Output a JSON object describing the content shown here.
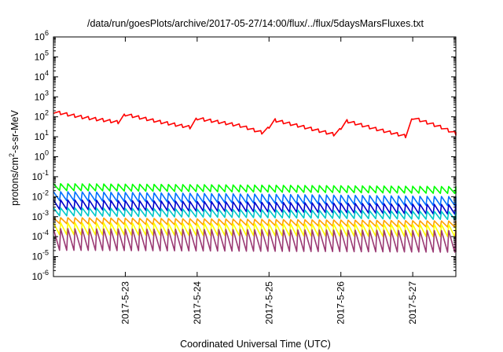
{
  "chart_data": {
    "type": "line",
    "title": "/data/run/goesPlots/archive/2017-05-27/14:00/flux/../flux/5daysMarsFluxes.txt",
    "xlabel": "Coordinated Universal Time (UTC)",
    "ylabel": {
      "prefix": "protons/cm",
      "sup": "2",
      "suffix": "-s-sr-MeV"
    },
    "yscale": "log",
    "ylim_exp": [
      -6,
      6
    ],
    "ytick_exps": [
      -6,
      -5,
      -4,
      -3,
      -2,
      -1,
      0,
      1,
      2,
      3,
      4,
      5,
      6
    ],
    "xlim_days": [
      0.0,
      5.6
    ],
    "xtick_positions": [
      1.0,
      2.0,
      3.0,
      4.0,
      5.0
    ],
    "xtick_labels": [
      "2017-5-23",
      "2017-5-24",
      "2017-5-25",
      "2017-5-26",
      "2017-5-27"
    ],
    "grid": false,
    "legend": "none",
    "series": [
      {
        "color": "#ff0000",
        "sawtooth": {
          "period": 0.1,
          "drop": 0.7
        },
        "anchors": [
          [
            0.0,
            150
          ],
          [
            0.4,
            80
          ],
          [
            0.9,
            45
          ],
          [
            1.0,
            110
          ],
          [
            1.5,
            45
          ],
          [
            1.9,
            25
          ],
          [
            2.0,
            70
          ],
          [
            2.6,
            30
          ],
          [
            2.95,
            12
          ],
          [
            3.05,
            60
          ],
          [
            3.5,
            25
          ],
          [
            3.95,
            10
          ],
          [
            4.05,
            55
          ],
          [
            4.5,
            20
          ],
          [
            4.9,
            9
          ],
          [
            5.0,
            75
          ],
          [
            5.4,
            25
          ],
          [
            5.6,
            12
          ]
        ]
      },
      {
        "color": "#00ff00",
        "sawtooth": {
          "period": 0.1,
          "drop": 2.2
        },
        "anchors": [
          [
            0.0,
            0.045
          ],
          [
            5.6,
            0.032
          ]
        ]
      },
      {
        "color": "#0070ff",
        "sawtooth": {
          "period": 0.1,
          "drop": 2.8
        },
        "anchors": [
          [
            0.0,
            0.018
          ],
          [
            5.6,
            0.01
          ]
        ]
      },
      {
        "color": "#0000cc",
        "sawtooth": {
          "period": 0.1,
          "drop": 3.0
        },
        "anchors": [
          [
            0.0,
            0.007
          ],
          [
            5.6,
            0.004
          ]
        ]
      },
      {
        "color": "#00c8c8",
        "sawtooth": {
          "period": 0.1,
          "drop": 2.5
        },
        "anchors": [
          [
            0.0,
            0.0028
          ],
          [
            5.6,
            0.0018
          ]
        ]
      },
      {
        "color": "#ffa000",
        "sawtooth": {
          "period": 0.1,
          "drop": 2.0
        },
        "anchors": [
          [
            0.0,
            0.0009
          ],
          [
            5.6,
            0.0006
          ]
        ]
      },
      {
        "color": "#ffff00",
        "sawtooth": {
          "period": 0.1,
          "drop": 4.0
        },
        "anchors": [
          [
            0.0,
            0.0005
          ],
          [
            5.6,
            0.0004
          ]
        ]
      },
      {
        "color": "#9b3a74",
        "sawtooth": {
          "period": 0.1,
          "drop": 12.0
        },
        "anchors": [
          [
            0.0,
            0.00025
          ],
          [
            5.6,
            0.0002
          ]
        ]
      }
    ]
  }
}
